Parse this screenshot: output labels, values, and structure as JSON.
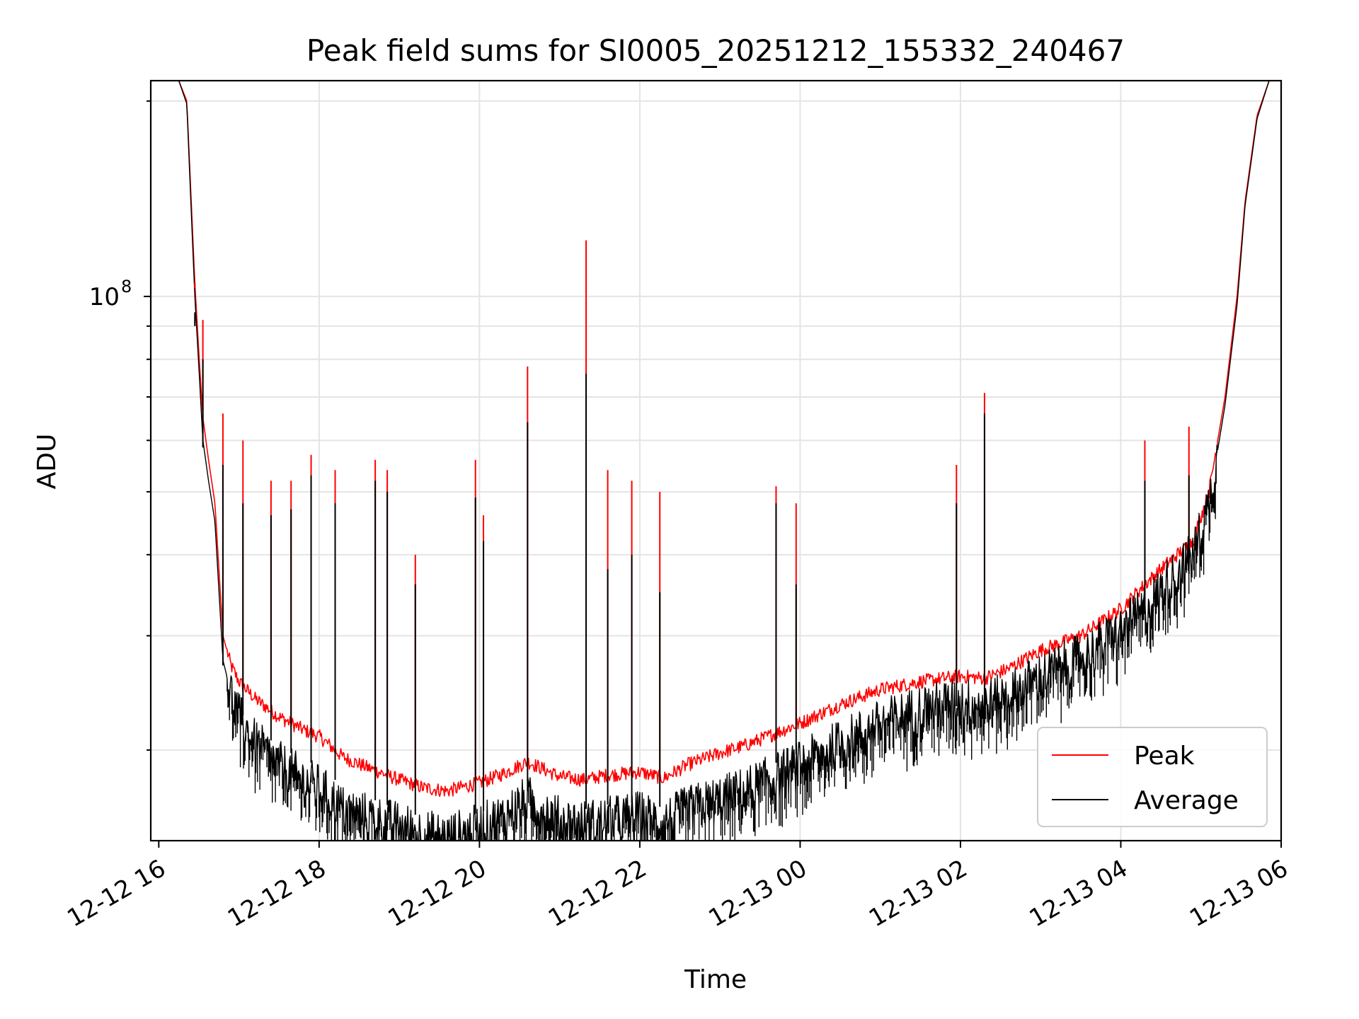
{
  "chart_data": {
    "type": "line",
    "title": "Peak field sums for SI0005_20251212_155332_240467",
    "xlabel": "Time",
    "ylabel": "ADU",
    "y_scale": "log",
    "grid": true,
    "legend_position": "lower-right",
    "x_range_hours": [
      15.9,
      30.0
    ],
    "ylim": [
      14500000,
      215000000
    ],
    "x_ticks": [
      {
        "value": 16,
        "label": "12-12 16"
      },
      {
        "value": 18,
        "label": "12-12 18"
      },
      {
        "value": 20,
        "label": "12-12 20"
      },
      {
        "value": 22,
        "label": "12-12 22"
      },
      {
        "value": 24,
        "label": "12-13 00"
      },
      {
        "value": 26,
        "label": "12-13 02"
      },
      {
        "value": 28,
        "label": "12-13 04"
      },
      {
        "value": 30,
        "label": "12-13 06"
      }
    ],
    "y_major_ticks": [
      {
        "value": 100000000,
        "base": "10",
        "exponent": "8"
      }
    ],
    "y_minor_ticks": [
      20000000,
      30000000,
      40000000,
      50000000,
      60000000,
      70000000,
      80000000,
      90000000,
      200000000
    ],
    "x_unit_note": "x values are hours since 2025-12-12 00:00",
    "series": [
      {
        "name": "Peak",
        "color": "#ff0000",
        "x": [
          16.25,
          16.35,
          16.4,
          16.45,
          16.5,
          16.55,
          16.62,
          16.7,
          16.8,
          16.9,
          17.0,
          17.2,
          17.5,
          17.8,
          18.0,
          18.3,
          18.6,
          19.0,
          19.3,
          19.6,
          20.0,
          20.3,
          20.6,
          21.0,
          21.3,
          21.6,
          22.0,
          22.3,
          22.6,
          23.0,
          23.3,
          23.6,
          24.0,
          24.5,
          25.0,
          25.5,
          26.0,
          26.3,
          26.6,
          27.0,
          27.5,
          28.0,
          28.3,
          28.6,
          28.9,
          29.1,
          29.3,
          29.45,
          29.55,
          29.7,
          29.85
        ],
        "y": [
          215000000,
          200000000,
          145000000,
          105000000,
          82000000,
          65000000,
          56000000,
          48000000,
          30000000,
          27000000,
          25500000,
          24000000,
          22500000,
          21500000,
          21000000,
          19500000,
          18800000,
          18000000,
          17500000,
          17300000,
          17800000,
          18400000,
          19200000,
          18200000,
          18000000,
          18300000,
          18500000,
          18100000,
          19000000,
          19800000,
          20300000,
          21000000,
          22000000,
          23500000,
          24800000,
          25500000,
          26000000,
          25800000,
          26700000,
          28500000,
          30000000,
          33000000,
          36000000,
          39000000,
          42000000,
          50000000,
          70000000,
          100000000,
          140000000,
          190000000,
          215000000
        ]
      },
      {
        "name": "Average",
        "color": "#000000",
        "x": [
          16.25,
          16.35,
          16.4,
          16.45,
          16.5,
          16.55,
          16.62,
          16.7,
          16.8,
          16.9,
          17.0,
          17.2,
          17.5,
          17.8,
          18.0,
          18.3,
          18.6,
          19.0,
          19.3,
          19.6,
          20.0,
          20.3,
          20.6,
          21.0,
          21.3,
          21.6,
          22.0,
          22.3,
          22.6,
          23.0,
          23.3,
          23.6,
          24.0,
          24.5,
          25.0,
          25.5,
          26.0,
          26.3,
          26.6,
          27.0,
          27.5,
          28.0,
          28.3,
          28.6,
          28.9,
          29.1,
          29.3,
          29.45,
          29.55,
          29.7,
          29.85
        ],
        "y": [
          215000000,
          198000000,
          140000000,
          100000000,
          78000000,
          60000000,
          52000000,
          45000000,
          27500000,
          24500000,
          22500000,
          20500000,
          19000000,
          18000000,
          17500000,
          16200000,
          15800000,
          15300000,
          14900000,
          14700000,
          15200000,
          15800000,
          16800000,
          15600000,
          15400000,
          15600000,
          15900000,
          15500000,
          16200000,
          16800000,
          17300000,
          18000000,
          19000000,
          20500000,
          22000000,
          23200000,
          23800000,
          23600000,
          24300000,
          26000000,
          27800000,
          30500000,
          33000000,
          36500000,
          40000000,
          48000000,
          68000000,
          97000000,
          138000000,
          188000000,
          215000000
        ]
      }
    ],
    "spikes": [
      {
        "x": 16.45,
        "peak": 103000000,
        "average": 90000000
      },
      {
        "x": 16.55,
        "peak": 92000000,
        "average": 80000000
      },
      {
        "x": 16.8,
        "peak": 66000000,
        "average": 55000000
      },
      {
        "x": 17.05,
        "peak": 60000000,
        "average": 48000000
      },
      {
        "x": 17.4,
        "peak": 52000000,
        "average": 46000000
      },
      {
        "x": 17.65,
        "peak": 52000000,
        "average": 47000000
      },
      {
        "x": 17.9,
        "peak": 57000000,
        "average": 53000000
      },
      {
        "x": 18.2,
        "peak": 54000000,
        "average": 48000000
      },
      {
        "x": 18.7,
        "peak": 56000000,
        "average": 52000000
      },
      {
        "x": 18.85,
        "peak": 54000000,
        "average": 50000000
      },
      {
        "x": 19.2,
        "peak": 40000000,
        "average": 36000000
      },
      {
        "x": 19.95,
        "peak": 56000000,
        "average": 49000000
      },
      {
        "x": 20.05,
        "peak": 46000000,
        "average": 42000000
      },
      {
        "x": 20.6,
        "peak": 78000000,
        "average": 64000000
      },
      {
        "x": 21.33,
        "peak": 122000000,
        "average": 76000000
      },
      {
        "x": 21.6,
        "peak": 54000000,
        "average": 38000000
      },
      {
        "x": 21.9,
        "peak": 52000000,
        "average": 40000000
      },
      {
        "x": 22.25,
        "peak": 50000000,
        "average": 35000000
      },
      {
        "x": 23.7,
        "peak": 51000000,
        "average": 48000000
      },
      {
        "x": 23.95,
        "peak": 48000000,
        "average": 36000000
      },
      {
        "x": 25.95,
        "peak": 55000000,
        "average": 48000000
      },
      {
        "x": 26.3,
        "peak": 71000000,
        "average": 66000000
      },
      {
        "x": 28.3,
        "peak": 60000000,
        "average": 52000000
      },
      {
        "x": 28.85,
        "peak": 63000000,
        "average": 53000000
      }
    ],
    "legend": [
      {
        "label": "Peak",
        "color": "#ff0000"
      },
      {
        "label": "Average",
        "color": "#000000"
      }
    ]
  }
}
